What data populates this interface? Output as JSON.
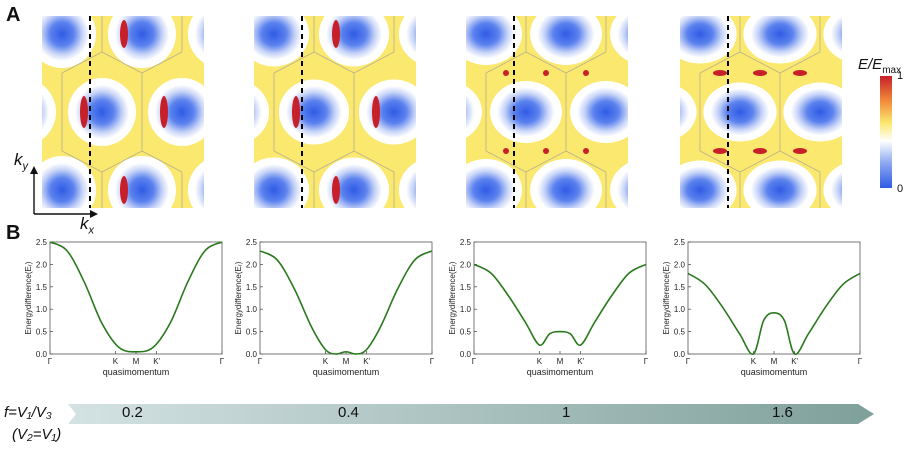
{
  "panel_a": {
    "letter": "A",
    "colorbar": {
      "label": "E/E",
      "sub": "max",
      "max_tick": "1",
      "min_tick": "0"
    },
    "axes": {
      "ky": "k",
      "ky_sub": "y",
      "kx": "k",
      "kx_sub": "x"
    },
    "colors": {
      "low": "#2f5be6",
      "mid": "#ffffff",
      "yellow": "#fbe86e",
      "high": "#c8202a"
    }
  },
  "panel_b": {
    "letter": "B",
    "chart_data": [
      {
        "type": "line",
        "ylabel": "Energydifference(Eᵣ)",
        "xlabel": "quasimomentum",
        "x_ticks": [
          "Γ",
          "K",
          "M",
          "K'",
          "Γ"
        ],
        "y_ticks": [
          "0.0",
          "0.5",
          "1.0",
          "1.5",
          "2.0",
          "2.5"
        ],
        "ylim": [
          0,
          2.5
        ],
        "color": "#2a7a1d",
        "series": [
          {
            "x": [
              0,
              0.1,
              0.2,
              0.3,
              0.4,
              0.5,
              0.6,
              0.7,
              0.8,
              0.9,
              1.0
            ],
            "y": [
              2.5,
              2.3,
              1.6,
              0.7,
              0.15,
              0.05,
              0.15,
              0.7,
              1.6,
              2.3,
              2.5
            ]
          }
        ]
      },
      {
        "type": "line",
        "ylabel": "Energydifference(Eᵣ)",
        "xlabel": "quasimomentum",
        "x_ticks": [
          "Γ",
          "K",
          "M",
          "K'",
          "Γ"
        ],
        "y_ticks": [
          "0.0",
          "0.5",
          "1.0",
          "1.5",
          "2.0",
          "2.5"
        ],
        "ylim": [
          0,
          2.5
        ],
        "color": "#2a7a1d",
        "series": [
          {
            "x": [
              0,
              0.1,
              0.2,
              0.3,
              0.38,
              0.44,
              0.5,
              0.56,
              0.62,
              0.7,
              0.8,
              0.9,
              1.0
            ],
            "y": [
              2.3,
              2.1,
              1.45,
              0.6,
              0.1,
              0.0,
              0.05,
              0.0,
              0.1,
              0.6,
              1.45,
              2.1,
              2.3
            ]
          }
        ]
      },
      {
        "type": "line",
        "ylabel": "Energydifference(Eᵣ)",
        "xlabel": "quasimomentum",
        "x_ticks": [
          "Γ",
          "K",
          "M",
          "K'",
          "Γ"
        ],
        "y_ticks": [
          "0.0",
          "0.5",
          "1.0",
          "1.5",
          "2.0",
          "2.5"
        ],
        "ylim": [
          0,
          2.5
        ],
        "color": "#2a7a1d",
        "series": [
          {
            "x": [
              0,
              0.1,
              0.2,
              0.3,
              0.38,
              0.44,
              0.5,
              0.56,
              0.62,
              0.7,
              0.8,
              0.9,
              1.0
            ],
            "y": [
              2.0,
              1.8,
              1.3,
              0.7,
              0.2,
              0.45,
              0.5,
              0.45,
              0.2,
              0.7,
              1.3,
              1.8,
              2.0
            ]
          }
        ]
      },
      {
        "type": "line",
        "ylabel": "Energydifference(Eᵣ)",
        "xlabel": "quasimomentum",
        "x_ticks": [
          "Γ",
          "K",
          "M",
          "K'",
          "Γ"
        ],
        "y_ticks": [
          "0.0",
          "0.5",
          "1.0",
          "1.5",
          "2.0",
          "2.5"
        ],
        "ylim": [
          0,
          2.5
        ],
        "color": "#2a7a1d",
        "series": [
          {
            "x": [
              0,
              0.1,
              0.2,
              0.3,
              0.38,
              0.44,
              0.5,
              0.56,
              0.62,
              0.7,
              0.8,
              0.9,
              1.0
            ],
            "y": [
              1.8,
              1.55,
              1.05,
              0.45,
              0.0,
              0.75,
              0.92,
              0.75,
              0.0,
              0.45,
              1.05,
              1.55,
              1.8
            ]
          }
        ]
      }
    ]
  },
  "parameter": {
    "f_label": "f=V₁/V₃",
    "v_label": "(V₂=V₁)",
    "values": [
      "0.2",
      "0.4",
      "1",
      "1.6"
    ],
    "arrow_colors": [
      "#d4e2e3",
      "#7fa09a"
    ]
  }
}
